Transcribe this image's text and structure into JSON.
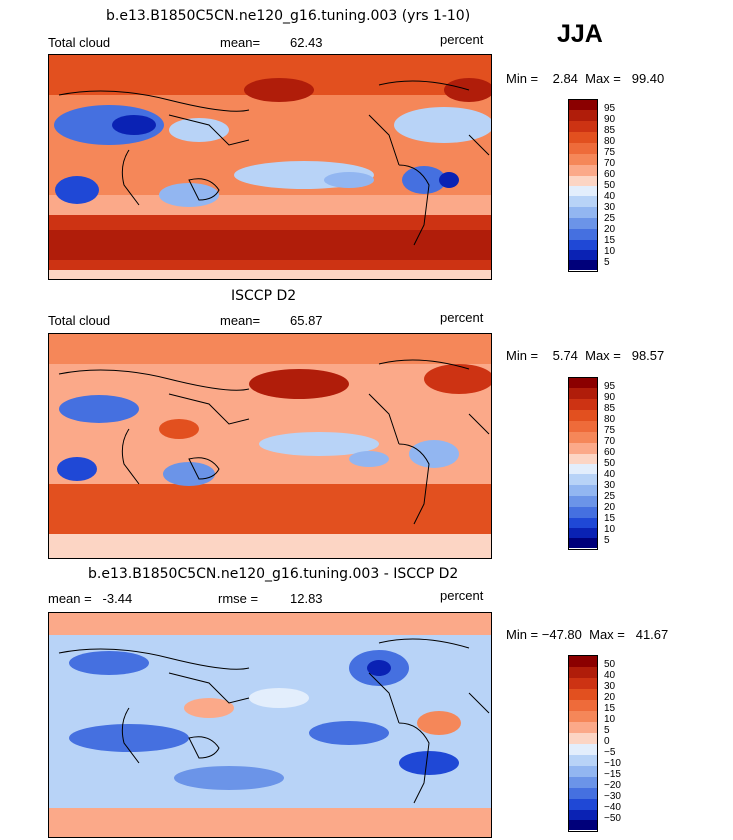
{
  "season": "JJA",
  "panels": [
    {
      "title": "b.e13.B1850C5CN.ne120_g16.tuning.003 (yrs 1-10)",
      "variable": "Total cloud",
      "mean_label": "mean=",
      "mean_value": "62.43",
      "units": "percent",
      "range_text": "Min =    2.84  Max =   99.40",
      "levels": [
        "95",
        "90",
        "85",
        "80",
        "75",
        "70",
        "60",
        "50",
        "40",
        "30",
        "25",
        "20",
        "15",
        "10",
        "5"
      ]
    },
    {
      "title": "ISCCP D2",
      "variable": "Total cloud",
      "mean_label": "mean=",
      "mean_value": "65.87",
      "units": "percent",
      "range_text": "Min =    5.74  Max =   98.57",
      "levels": [
        "95",
        "90",
        "85",
        "80",
        "75",
        "70",
        "60",
        "50",
        "40",
        "30",
        "25",
        "20",
        "15",
        "10",
        "5"
      ]
    },
    {
      "title": "b.e13.B1850C5CN.ne120_g16.tuning.003 - ISCCP D2",
      "variable": "mean =   -3.44",
      "mean_label": "rmse =",
      "mean_value": "12.83",
      "units": "percent",
      "range_text": "Min = −47.80  Max =   41.67",
      "levels": [
        "50",
        "40",
        "30",
        "20",
        "15",
        "10",
        "5",
        "0",
        "−5",
        "−10",
        "−15",
        "−20",
        "−30",
        "−40",
        "−50"
      ]
    }
  ],
  "colors": {
    "scale": [
      "#8b0000",
      "#b01d0a",
      "#cd3313",
      "#e2501f",
      "#ee6b3a",
      "#f58759",
      "#fba989",
      "#fcd5c4",
      "#e3eefc",
      "#b8d3f7",
      "#92b6f1",
      "#6b94e8",
      "#4570e0",
      "#1f48d6",
      "#0a22b4",
      "#00007a"
    ]
  }
}
